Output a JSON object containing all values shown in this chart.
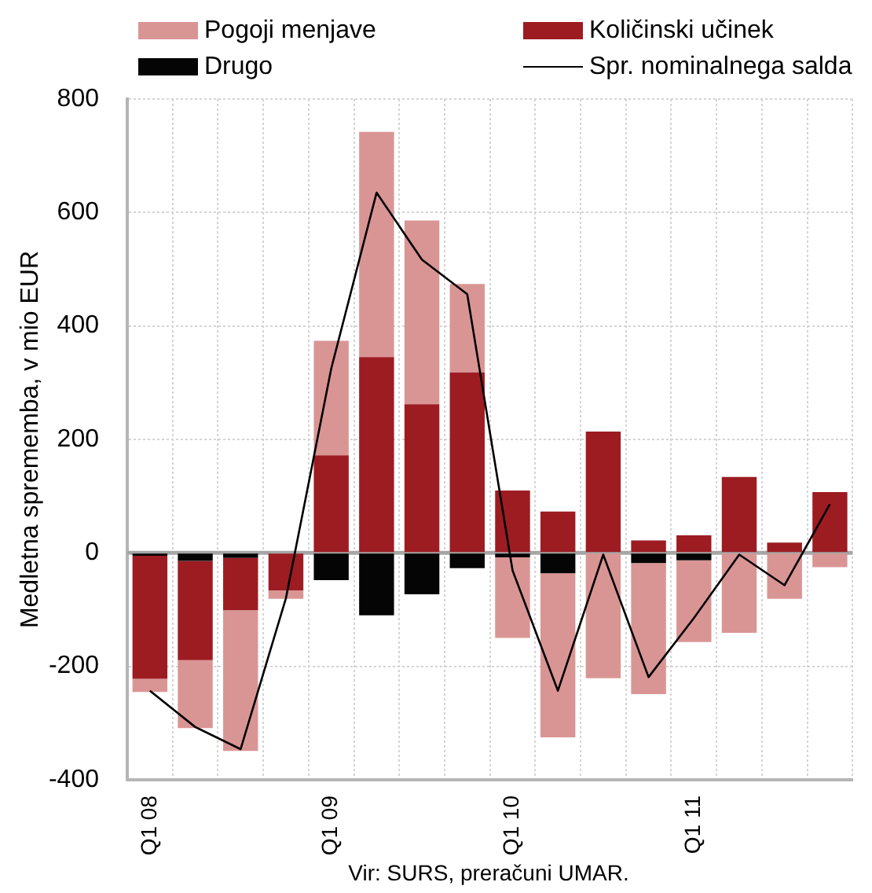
{
  "chart_data": {
    "type": "bar",
    "stacked": true,
    "categories": [
      "Q1 08",
      null,
      null,
      null,
      "Q1 09",
      null,
      null,
      null,
      "Q1 10",
      null,
      null,
      null,
      "Q1 11",
      null,
      null,
      null
    ],
    "series": [
      {
        "name": "Drugo",
        "color": "#050505",
        "values": [
          -5,
          -14,
          -9,
          null,
          -48,
          -110,
          -73,
          -27,
          -8,
          -36,
          null,
          -18,
          -13,
          null,
          null,
          null
        ]
      },
      {
        "name": "Količinski učinek",
        "color": "#9c1c22",
        "values": [
          -217,
          -175,
          -92,
          -66,
          172,
          345,
          262,
          318,
          110,
          73,
          214,
          22,
          31,
          134,
          18,
          107
        ]
      },
      {
        "name": "Pogoji menjave",
        "color": "#d99594",
        "values": [
          -23,
          -120,
          -248,
          -15,
          202,
          397,
          324,
          156,
          -142,
          -289,
          -221,
          -231,
          -144,
          -141,
          -81,
          -25
        ]
      },
      {
        "name": "Spr. nominalnega salda",
        "type": "line",
        "color": "#000000",
        "values": [
          -243,
          -307,
          -346,
          -80,
          325,
          635,
          517,
          456,
          -31,
          -243,
          -3,
          -219,
          -115,
          -3,
          -57,
          86
        ]
      }
    ],
    "ylabel": "Medletna sprememba, v mio EUR",
    "ylim": [
      -400,
      800
    ],
    "yticks": [
      -400,
      -200,
      0,
      200,
      400,
      600,
      800
    ],
    "grid": true,
    "legend": "top",
    "annotations": [
      "Vir: SURS, preračuni UMAR."
    ]
  }
}
